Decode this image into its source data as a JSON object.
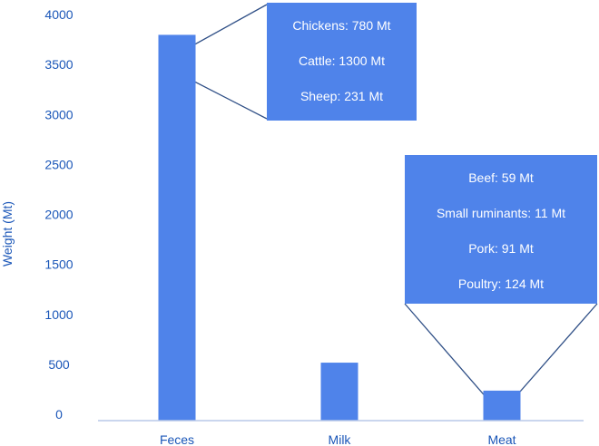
{
  "chart_data": {
    "type": "bar",
    "ylabel": "Weight (Mt)",
    "xlabel": "",
    "ylim": [
      0,
      4000
    ],
    "yticks": [
      0,
      500,
      1000,
      1500,
      2000,
      2500,
      3000,
      3500,
      4000
    ],
    "categories": [
      "Feces",
      "Milk",
      "Meat"
    ],
    "values": [
      3860,
      580,
      300
    ],
    "grid": false,
    "legend": "none",
    "callouts": [
      {
        "category": "Feces",
        "items": [
          "Chickens: 780 Mt",
          "Cattle: 1300 Mt",
          "Sheep: 231 Mt"
        ]
      },
      {
        "category": "Meat",
        "items": [
          "Beef: 59 Mt",
          "Small ruminants: 11 Mt",
          "Pork: 91 Mt",
          "Poultry: 124 Mt"
        ]
      }
    ],
    "colors": {
      "bar": "#4f83ea",
      "callout": "#4f83ea",
      "text": "#1a56b8",
      "axis": "#b8c8e8",
      "connector": "#2f4f86"
    }
  }
}
